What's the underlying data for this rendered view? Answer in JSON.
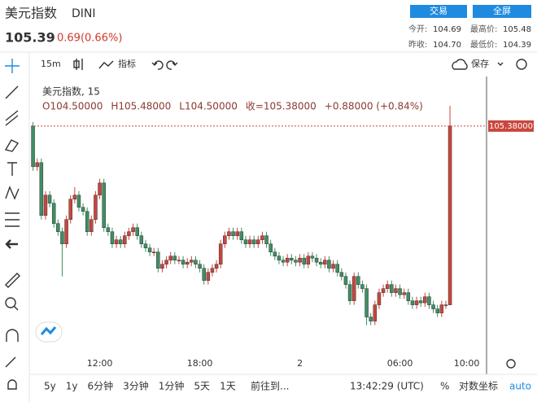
{
  "header": {
    "name": "美元指数",
    "symbol": "DINI",
    "price": "105.39",
    "change": "0.69(0.66%)",
    "buttons": [
      "交易",
      "全屏"
    ],
    "stats": [
      {
        "label": "今开:",
        "value": "104.69"
      },
      {
        "label": "最高价:",
        "value": "105.48"
      },
      {
        "label": "昨收:",
        "value": "104.70"
      },
      {
        "label": "最低价:",
        "value": "104.39"
      }
    ]
  },
  "toolbar": {
    "interval": "15m",
    "indicators": "指标",
    "save": "保存"
  },
  "legend": {
    "title": "美元指数, 15",
    "ohlc": [
      "O104.50000",
      "H105.48000",
      "L104.50000",
      "收=105.38000",
      "+0.88000 (+0.84%)"
    ]
  },
  "footer": {
    "ranges": [
      "5y",
      "1y",
      "6分钟",
      "3分钟",
      "1分钟",
      "5天",
      "1天"
    ],
    "goto": "前往到...",
    "clock": "13:42:29 (UTC)",
    "percent": "%",
    "log": "对数坐标",
    "auto": "auto"
  },
  "chart_data": {
    "type": "candlestick",
    "x": [
      0,
      1,
      2,
      3,
      4,
      5,
      6,
      7,
      8,
      9,
      10,
      11,
      12,
      13,
      14,
      15,
      16,
      17,
      18,
      19,
      20,
      21,
      22,
      23,
      24,
      25,
      26,
      27,
      28,
      29,
      30,
      31,
      32,
      33,
      34,
      35,
      36,
      37,
      38,
      39,
      40,
      41,
      42,
      43,
      44,
      45,
      46,
      47,
      48,
      49,
      50,
      51,
      52,
      53,
      54,
      55,
      56,
      57,
      58,
      59,
      60,
      61,
      62,
      63,
      64,
      65,
      66,
      67,
      68,
      69,
      70,
      71,
      72,
      73,
      74,
      75,
      76,
      77,
      78,
      79,
      80,
      81,
      82,
      83,
      84,
      85,
      86,
      87,
      88,
      89,
      90,
      91,
      92,
      93,
      94,
      95,
      96,
      97,
      98,
      99,
      100
    ],
    "open": [
      105.38,
      105.18,
      105.2,
      104.94,
      105.04,
      105.0,
      104.9,
      104.86,
      104.8,
      104.92,
      105.02,
      105.04,
      104.98,
      104.96,
      104.86,
      104.92,
      105.04,
      105.1,
      104.88,
      104.86,
      104.8,
      104.82,
      104.8,
      104.84,
      104.86,
      104.88,
      104.84,
      104.8,
      104.78,
      104.76,
      104.76,
      104.68,
      104.7,
      104.72,
      104.74,
      104.72,
      104.72,
      104.7,
      104.71,
      104.72,
      104.7,
      104.68,
      104.62,
      104.66,
      104.68,
      104.7,
      104.8,
      104.84,
      104.86,
      104.84,
      104.86,
      104.82,
      104.8,
      104.82,
      104.8,
      104.82,
      104.84,
      104.8,
      104.76,
      104.74,
      104.72,
      104.71,
      104.73,
      104.72,
      104.71,
      104.73,
      104.7,
      104.74,
      104.73,
      104.71,
      104.7,
      104.72,
      104.68,
      104.7,
      104.66,
      104.64,
      104.6,
      104.52,
      104.64,
      104.6,
      104.58,
      104.44,
      104.42,
      104.5,
      104.56,
      104.58,
      104.6,
      104.56,
      104.58,
      104.55,
      104.56,
      104.52,
      104.5,
      104.52,
      104.51,
      104.54,
      104.5,
      104.48,
      104.46,
      104.5,
      104.5
    ],
    "high": [
      105.4,
      105.22,
      105.22,
      105.06,
      105.06,
      105.02,
      104.92,
      104.88,
      104.94,
      105.04,
      105.08,
      105.06,
      105.0,
      104.98,
      104.94,
      105.06,
      105.12,
      105.12,
      104.9,
      104.88,
      104.84,
      104.84,
      104.86,
      104.88,
      104.9,
      104.9,
      104.86,
      104.82,
      104.8,
      104.78,
      104.78,
      104.72,
      104.74,
      104.76,
      104.76,
      104.74,
      104.74,
      104.73,
      104.74,
      104.74,
      104.72,
      104.7,
      104.68,
      104.7,
      104.72,
      104.82,
      104.86,
      104.88,
      104.88,
      104.88,
      104.88,
      104.84,
      104.84,
      104.84,
      104.84,
      104.86,
      104.86,
      104.82,
      104.78,
      104.76,
      104.74,
      104.75,
      104.75,
      104.74,
      104.75,
      104.75,
      104.76,
      104.76,
      104.75,
      104.73,
      104.74,
      104.74,
      104.72,
      104.72,
      104.68,
      104.66,
      104.62,
      104.66,
      104.66,
      104.62,
      104.6,
      104.46,
      104.52,
      104.58,
      104.6,
      104.62,
      104.62,
      104.6,
      104.6,
      104.58,
      104.58,
      104.54,
      104.54,
      104.54,
      104.56,
      104.56,
      104.52,
      104.5,
      104.52,
      104.52,
      105.48
    ],
    "low": [
      105.16,
      105.16,
      104.92,
      104.92,
      104.98,
      104.88,
      104.84,
      104.64,
      104.78,
      104.9,
      105.0,
      104.96,
      104.94,
      104.84,
      104.84,
      104.9,
      105.02,
      104.86,
      104.84,
      104.78,
      104.78,
      104.78,
      104.78,
      104.82,
      104.84,
      104.82,
      104.78,
      104.76,
      104.74,
      104.74,
      104.66,
      104.66,
      104.68,
      104.7,
      104.7,
      104.7,
      104.68,
      104.68,
      104.69,
      104.68,
      104.66,
      104.6,
      104.6,
      104.64,
      104.66,
      104.68,
      104.78,
      104.82,
      104.82,
      104.82,
      104.8,
      104.78,
      104.78,
      104.78,
      104.78,
      104.8,
      104.78,
      104.74,
      104.72,
      104.7,
      104.69,
      104.69,
      104.7,
      104.69,
      104.69,
      104.68,
      104.68,
      104.71,
      104.69,
      104.68,
      104.68,
      104.66,
      104.66,
      104.64,
      104.62,
      104.58,
      104.5,
      104.5,
      104.58,
      104.56,
      104.4,
      104.4,
      104.4,
      104.48,
      104.54,
      104.56,
      104.54,
      104.54,
      104.53,
      104.53,
      104.5,
      104.48,
      104.48,
      104.49,
      104.49,
      104.48,
      104.46,
      104.44,
      104.44,
      104.48,
      104.5
    ],
    "close": [
      105.18,
      105.2,
      104.94,
      105.04,
      105.0,
      104.9,
      104.86,
      104.8,
      104.92,
      105.02,
      105.04,
      104.98,
      104.96,
      104.86,
      104.92,
      105.04,
      105.1,
      104.88,
      104.86,
      104.8,
      104.82,
      104.8,
      104.84,
      104.86,
      104.88,
      104.84,
      104.8,
      104.78,
      104.76,
      104.76,
      104.68,
      104.7,
      104.72,
      104.74,
      104.72,
      104.72,
      104.7,
      104.71,
      104.72,
      104.7,
      104.68,
      104.62,
      104.66,
      104.68,
      104.7,
      104.8,
      104.84,
      104.86,
      104.84,
      104.86,
      104.82,
      104.8,
      104.82,
      104.8,
      104.82,
      104.84,
      104.8,
      104.76,
      104.74,
      104.72,
      104.71,
      104.73,
      104.72,
      104.71,
      104.73,
      104.7,
      104.74,
      104.73,
      104.71,
      104.7,
      104.72,
      104.68,
      104.7,
      104.66,
      104.64,
      104.6,
      104.52,
      104.64,
      104.6,
      104.58,
      104.44,
      104.42,
      104.5,
      104.56,
      104.58,
      104.6,
      104.56,
      104.58,
      104.55,
      104.56,
      104.52,
      104.5,
      104.52,
      104.51,
      104.54,
      104.5,
      104.48,
      104.46,
      104.5,
      104.5,
      105.38
    ],
    "up_color": "#c9463d",
    "down_color": "#3f8f63",
    "xlim": [
      -0.5,
      108
    ],
    "ylim": [
      104.15,
      105.6
    ],
    "xticks": [
      {
        "value": 16,
        "label": "12:00"
      },
      {
        "value": 40,
        "label": "18:00"
      },
      {
        "value": 64,
        "label": "2"
      },
      {
        "value": 88,
        "label": "06:00"
      },
      {
        "value": 104,
        "label": "10:00"
      }
    ],
    "price_line": {
      "value": 105.38,
      "label": "105.38000"
    }
  }
}
